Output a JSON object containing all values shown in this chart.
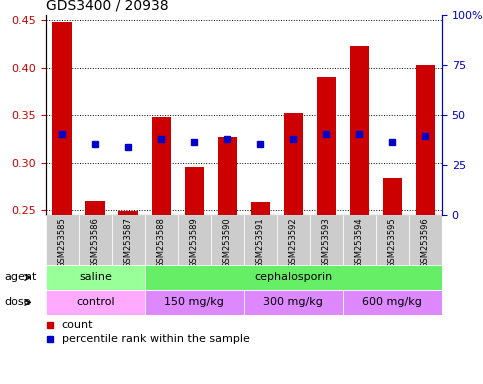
{
  "title": "GDS3400 / 20938",
  "samples": [
    "GSM253585",
    "GSM253586",
    "GSM253587",
    "GSM253588",
    "GSM253589",
    "GSM253590",
    "GSM253591",
    "GSM253592",
    "GSM253593",
    "GSM253594",
    "GSM253595",
    "GSM253596"
  ],
  "bar_values": [
    0.448,
    0.26,
    0.249,
    0.348,
    0.296,
    0.327,
    0.259,
    0.352,
    0.39,
    0.423,
    0.284,
    0.403
  ],
  "percentile_values": [
    0.33,
    0.32,
    0.317,
    0.325,
    0.322,
    0.325,
    0.32,
    0.325,
    0.33,
    0.33,
    0.322,
    0.328
  ],
  "ylim_left": [
    0.245,
    0.455
  ],
  "ylim_right": [
    0,
    100
  ],
  "yticks_left": [
    0.25,
    0.3,
    0.35,
    0.4,
    0.45
  ],
  "yticks_right": [
    0,
    25,
    50,
    75,
    100
  ],
  "bar_color": "#cc0000",
  "percentile_color": "#0000cc",
  "agent_groups": [
    {
      "label": "saline",
      "start": 0,
      "end": 3,
      "color": "#99ff99"
    },
    {
      "label": "cephalosporin",
      "start": 3,
      "end": 12,
      "color": "#66ee66"
    }
  ],
  "dose_groups": [
    {
      "label": "control",
      "start": 0,
      "end": 3,
      "color": "#ffaaff"
    },
    {
      "label": "150 mg/kg",
      "start": 3,
      "end": 6,
      "color": "#dd88ff"
    },
    {
      "label": "300 mg/kg",
      "start": 6,
      "end": 9,
      "color": "#dd88ff"
    },
    {
      "label": "600 mg/kg",
      "start": 9,
      "end": 12,
      "color": "#dd88ff"
    }
  ],
  "agent_row_label": "agent",
  "dose_row_label": "dose",
  "legend_count_label": "count",
  "legend_percentile_label": "percentile rank within the sample",
  "background_color": "#ffffff",
  "plot_bg_color": "#ffffff",
  "grid_color": "#000000",
  "tick_color_left": "#cc0000",
  "tick_color_right": "#0000cc",
  "bar_width": 0.6
}
